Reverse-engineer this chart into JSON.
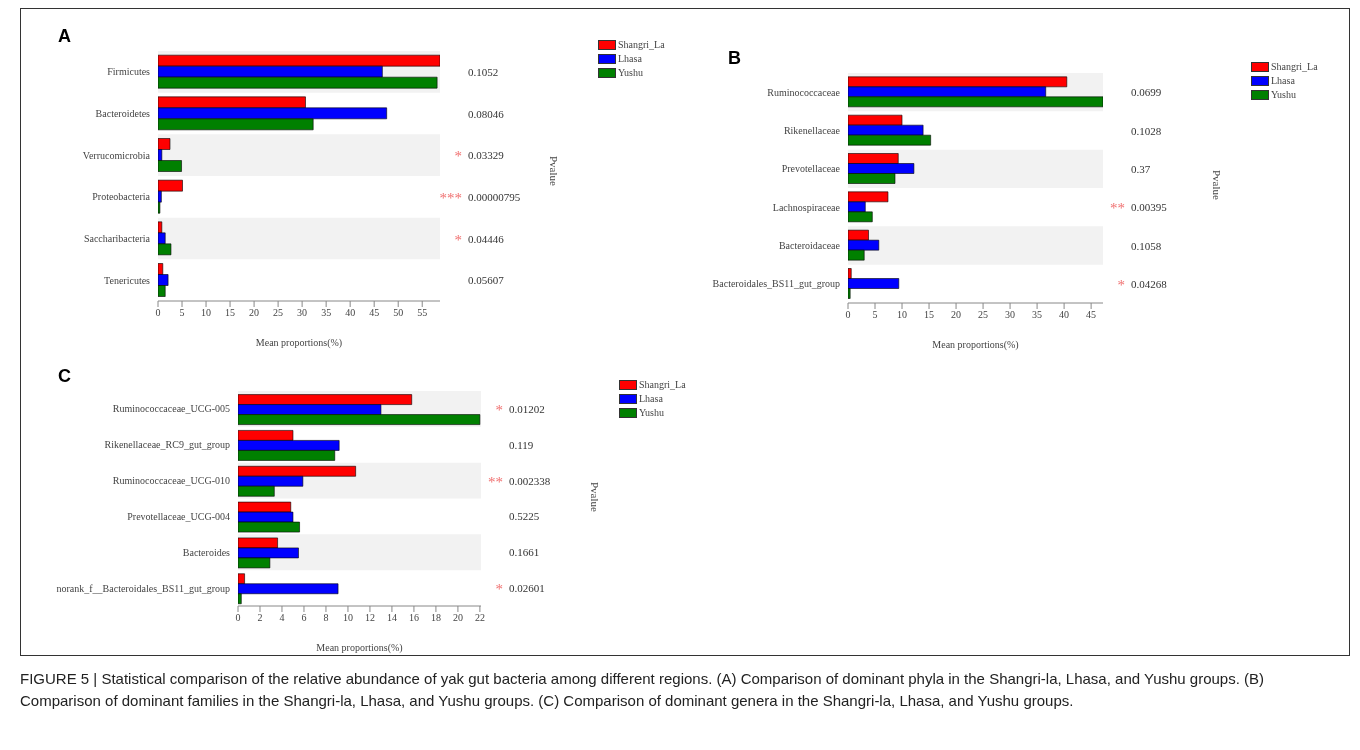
{
  "chart_data": [
    {
      "type": "bar",
      "orientation": "horizontal",
      "title": "A",
      "categories": [
        "Firmicutes",
        "Bacteroidetes",
        "Verrucomicrobia",
        "Proteobacteria",
        "Saccharibacteria",
        "Tenericutes"
      ],
      "series": [
        {
          "name": "Shangri_La",
          "color": "#ff0000",
          "values": [
            58.7,
            30.7,
            2.5,
            5.1,
            0.8,
            1.0
          ]
        },
        {
          "name": "Lhasa",
          "color": "#0000ff",
          "values": [
            46.7,
            47.6,
            0.8,
            0.7,
            1.5,
            2.1
          ]
        },
        {
          "name": "Yushu",
          "color": "#008000",
          "values": [
            58.1,
            32.3,
            4.9,
            0.4,
            2.7,
            1.5
          ]
        }
      ],
      "xlim": [
        0,
        58.7
      ],
      "xticks": [
        0,
        5,
        10,
        15,
        20,
        25,
        30,
        35,
        40,
        45,
        50,
        55
      ],
      "xlabel": "Mean proportions(%)",
      "y2label": "Pvalue",
      "legend": "top right",
      "bands": [
        {
          "axis": "y",
          "from": "Firmicutes",
          "to": "Firmicutes",
          "color": "#f2f2f2"
        },
        {
          "axis": "y",
          "from": "Verrucomicrobia",
          "to": "Verrucomicrobia",
          "color": "#f2f2f2"
        },
        {
          "axis": "y",
          "from": "Saccharibacteria",
          "to": "Saccharibacteria",
          "color": "#f2f2f2"
        }
      ],
      "annotations": [
        "0.1052",
        "0.08046",
        "* 0.03329",
        "*** 0.00000795",
        "* 0.04446",
        "0.05607"
      ]
    },
    {
      "type": "bar",
      "orientation": "horizontal",
      "title": "B",
      "categories": [
        "Ruminococcaceae",
        "Rikenellaceae",
        "Prevotellaceae",
        "Lachnospiraceae",
        "Bacteroidaceae",
        "Bacteroidales_BS11_gut_group"
      ],
      "series": [
        {
          "name": "Shangri_La",
          "color": "#ff0000",
          "values": [
            40.5,
            10.0,
            9.3,
            7.4,
            3.8,
            0.6
          ]
        },
        {
          "name": "Lhasa",
          "color": "#0000ff",
          "values": [
            36.6,
            13.9,
            12.2,
            3.2,
            5.7,
            9.4
          ]
        },
        {
          "name": "Yushu",
          "color": "#008000",
          "values": [
            47.2,
            15.3,
            8.7,
            4.5,
            3.0,
            0.4
          ]
        }
      ],
      "xlim": [
        0,
        47.2
      ],
      "xticks": [
        0,
        5,
        10,
        15,
        20,
        25,
        30,
        35,
        40,
        45
      ],
      "xlabel": "Mean proportions(%)",
      "y2label": "Pvalue",
      "legend": "top right",
      "bands": [
        {
          "axis": "y",
          "from": "Ruminococcaceae",
          "to": "Ruminococcaceae",
          "color": "#f2f2f2"
        },
        {
          "axis": "y",
          "from": "Prevotellaceae",
          "to": "Prevotellaceae",
          "color": "#f2f2f2"
        },
        {
          "axis": "y",
          "from": "Bacteroidaceae",
          "to": "Bacteroidaceae",
          "color": "#f2f2f2"
        }
      ],
      "annotations": [
        "0.0699",
        "0.1028",
        "0.37",
        "** 0.00395",
        "0.1058",
        "* 0.04268"
      ]
    },
    {
      "type": "bar",
      "orientation": "horizontal",
      "title": "C",
      "categories": [
        "Ruminococcaceae_UCG-005",
        "Rikenellaceae_RC9_gut_group",
        "Ruminococcaceae_UCG-010",
        "Prevotellaceae_UCG-004",
        "Bacteroides",
        "norank_f__Bacteroidales_BS11_gut_group"
      ],
      "series": [
        {
          "name": "Shangri_La",
          "color": "#ff0000",
          "values": [
            15.8,
            5.0,
            10.7,
            4.8,
            3.6,
            0.6
          ]
        },
        {
          "name": "Lhasa",
          "color": "#0000ff",
          "values": [
            13.0,
            9.2,
            5.9,
            5.0,
            5.5,
            9.1
          ]
        },
        {
          "name": "Yushu",
          "color": "#008000",
          "values": [
            22.0,
            8.8,
            3.3,
            5.6,
            2.9,
            0.3
          ]
        }
      ],
      "xlim": [
        0,
        22.1
      ],
      "xticks": [
        0,
        2,
        4,
        6,
        8,
        10,
        12,
        14,
        16,
        18,
        20,
        22
      ],
      "xlabel": "Mean proportions(%)",
      "y2label": "Pvalue",
      "legend": "top right",
      "bands": [
        {
          "axis": "y",
          "from": "Ruminococcaceae_UCG-005",
          "to": "Ruminococcaceae_UCG-005",
          "color": "#f2f2f2"
        },
        {
          "axis": "y",
          "from": "Ruminococcaceae_UCG-010",
          "to": "Ruminococcaceae_UCG-010",
          "color": "#f2f2f2"
        },
        {
          "axis": "y",
          "from": "Bacteroides",
          "to": "Bacteroides",
          "color": "#f2f2f2"
        }
      ],
      "annotations": [
        "* 0.01202",
        "0.119",
        "** 0.002338",
        "0.5225",
        "0.1661",
        "* 0.02601",
        "FIGURE 5 | Statistical comparison of the relative abundance of yak gut bacteria among different regions. (A) Comparison of dominant phyla in the Shangri-la, Lhasa, and Yushu groups. (B) Comparison of dominant families in the Shangri-la, Lhasa, and Yushu groups. (C) Comparison of dominant genera in the Shangri-la, Lhasa, and Yushu groups."
      ]
    }
  ]
}
